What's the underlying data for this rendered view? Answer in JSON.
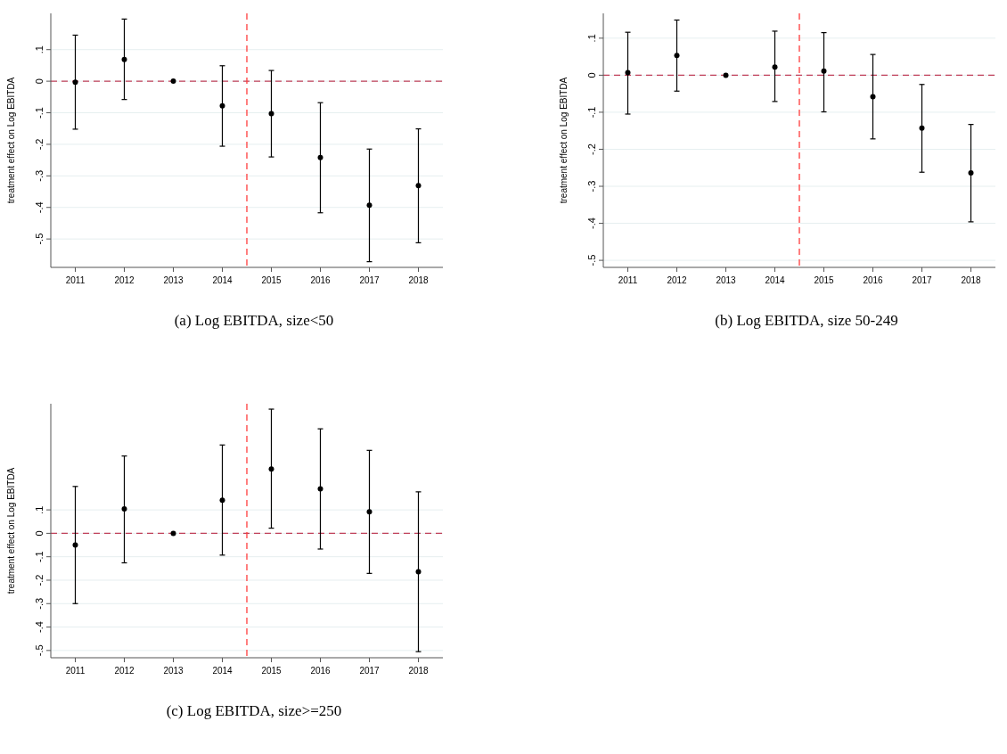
{
  "chart_data": [
    {
      "type": "scatter",
      "title": "(a) Log EBITDA, size<50",
      "ylabel": "treatment effect on Log EBITDA",
      "x": [
        2011,
        2012,
        2013,
        2014,
        2015,
        2016,
        2017,
        2018
      ],
      "xlim": [
        2010.5,
        2018.5
      ],
      "xticks": [
        2011,
        2012,
        2013,
        2014,
        2015,
        2016,
        2017,
        2018
      ],
      "ylim": [
        -0.59,
        0.215
      ],
      "yticks": [
        {
          "value": 0.1,
          "label": ".1"
        },
        {
          "value": 0,
          "label": "0"
        },
        {
          "value": -0.1,
          "label": "-.1"
        },
        {
          "value": -0.2,
          "label": "-.2"
        },
        {
          "value": -0.3,
          "label": "-.3"
        },
        {
          "value": -0.4,
          "label": "-.4"
        },
        {
          "value": -0.5,
          "label": "-.5"
        }
      ],
      "grid": "y",
      "marker": "circle",
      "series": [
        {
          "color": "#000000",
          "values": [
            -0.003,
            0.069,
            0,
            -0.078,
            -0.103,
            -0.242,
            -0.393,
            -0.331
          ],
          "errors": [
            [
              -0.152,
              0.146
            ],
            [
              -0.058,
              0.197
            ],
            null,
            [
              -0.206,
              0.049
            ],
            [
              -0.24,
              0.034
            ],
            [
              -0.417,
              -0.068
            ],
            [
              -0.572,
              -0.215
            ],
            [
              -0.512,
              -0.151
            ]
          ]
        }
      ],
      "ref_lines": [
        {
          "axis": "y",
          "value": 0,
          "color": "#c0405a",
          "line_style": "dashed"
        },
        {
          "axis": "x",
          "value": 2014.5,
          "color": "#ff3b3b",
          "line_style": "dashed"
        }
      ]
    },
    {
      "type": "scatter",
      "title": "(b) Log EBITDA, size 50-249",
      "ylabel": "treatment effect on Log EBITDA",
      "x": [
        2011,
        2012,
        2013,
        2014,
        2015,
        2016,
        2017,
        2018
      ],
      "xlim": [
        2010.5,
        2018.5
      ],
      "xticks": [
        2011,
        2012,
        2013,
        2014,
        2015,
        2016,
        2017,
        2018
      ],
      "ylim": [
        -0.519,
        0.167
      ],
      "yticks": [
        {
          "value": 0.1,
          "label": ".1"
        },
        {
          "value": 0,
          "label": "0"
        },
        {
          "value": -0.1,
          "label": "-.1"
        },
        {
          "value": -0.2,
          "label": "-.2"
        },
        {
          "value": -0.3,
          "label": "-.3"
        },
        {
          "value": -0.4,
          "label": "-.4"
        },
        {
          "value": -0.5,
          "label": "-.5"
        }
      ],
      "grid": "y",
      "marker": "circle",
      "series": [
        {
          "color": "#000000",
          "values": [
            0.007,
            0.053,
            0,
            0.022,
            0.011,
            -0.058,
            -0.143,
            -0.264
          ],
          "errors": [
            [
              -0.105,
              0.116
            ],
            [
              -0.043,
              0.149
            ],
            null,
            [
              -0.071,
              0.119
            ],
            [
              -0.099,
              0.115
            ],
            [
              -0.172,
              0.056
            ],
            [
              -0.262,
              -0.025
            ],
            [
              -0.396,
              -0.133
            ]
          ]
        }
      ],
      "ref_lines": [
        {
          "axis": "y",
          "value": 0,
          "color": "#c0405a",
          "line_style": "dashed"
        },
        {
          "axis": "x",
          "value": 2014.5,
          "color": "#ff3b3b",
          "line_style": "dashed"
        }
      ]
    },
    {
      "type": "scatter",
      "title": "(c) Log EBITDA, size>=250",
      "ylabel": "treatment effect on Log EBITDA",
      "x": [
        2011,
        2012,
        2013,
        2014,
        2015,
        2016,
        2017,
        2018
      ],
      "xlim": [
        2010.5,
        2018.5
      ],
      "xticks": [
        2011,
        2012,
        2013,
        2014,
        2015,
        2016,
        2017,
        2018
      ],
      "ylim": [
        -0.531,
        0.553
      ],
      "yticks": [
        {
          "value": 0.1,
          "label": ".1"
        },
        {
          "value": 0,
          "label": "0"
        },
        {
          "value": -0.1,
          "label": "-.1"
        },
        {
          "value": -0.2,
          "label": "-.2"
        },
        {
          "value": -0.3,
          "label": "-.3"
        },
        {
          "value": -0.4,
          "label": "-.4"
        },
        {
          "value": -0.5,
          "label": "-.5"
        }
      ],
      "grid": "y",
      "marker": "circle",
      "series": [
        {
          "color": "#000000",
          "values": [
            -0.05,
            0.104,
            0,
            0.141,
            0.274,
            0.19,
            0.092,
            -0.164
          ],
          "errors": [
            [
              -0.3,
              0.2
            ],
            [
              -0.126,
              0.33
            ],
            null,
            [
              -0.093,
              0.377
            ],
            [
              0.022,
              0.53
            ],
            [
              -0.067,
              0.446
            ],
            [
              -0.171,
              0.354
            ],
            [
              -0.505,
              0.177
            ]
          ]
        }
      ],
      "ref_lines": [
        {
          "axis": "y",
          "value": 0,
          "color": "#c0405a",
          "line_style": "dashed"
        },
        {
          "axis": "x",
          "value": 2014.5,
          "color": "#ff3b3b",
          "line_style": "dashed"
        }
      ]
    }
  ]
}
